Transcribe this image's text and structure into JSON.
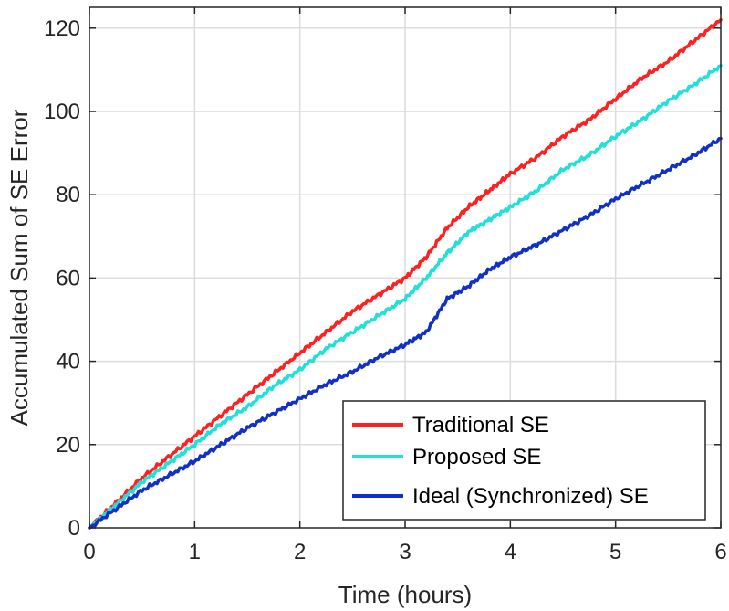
{
  "chart_data": {
    "type": "line",
    "title": "",
    "xlabel": "Time (hours)",
    "ylabel": "Accumulated Sum of SE Error",
    "xlim": [
      0,
      6
    ],
    "ylim": [
      0,
      125
    ],
    "xticks": [
      0,
      1,
      2,
      3,
      4,
      5,
      6
    ],
    "yticks": [
      0,
      20,
      40,
      60,
      80,
      100,
      120
    ],
    "xtick_labels": [
      "0",
      "1",
      "2",
      "3",
      "4",
      "5",
      "6"
    ],
    "ytick_labels": [
      "0",
      "20",
      "40",
      "60",
      "80",
      "100",
      "120"
    ],
    "grid": true,
    "legend_position": "bottom-right",
    "x": [
      0,
      0.25,
      0.5,
      0.75,
      1.0,
      1.25,
      1.5,
      1.75,
      2.0,
      2.25,
      2.5,
      2.75,
      3.0,
      3.2,
      3.4,
      3.6,
      3.8,
      4.0,
      4.25,
      4.5,
      4.75,
      5.0,
      5.25,
      5.5,
      5.75,
      6.0
    ],
    "series": [
      {
        "name": "Traditional SE",
        "color": "#ff2020",
        "values": [
          0,
          6,
          12,
          17,
          22,
          27,
          32,
          37,
          42,
          47,
          52,
          56,
          60,
          65,
          72,
          77,
          81,
          85,
          89,
          94,
          98,
          103,
          108,
          112,
          117,
          122
        ]
      },
      {
        "name": "Proposed SE",
        "color": "#20e0d8",
        "values": [
          0,
          5.5,
          11,
          15.5,
          20,
          25,
          29,
          34,
          38,
          43,
          47,
          51,
          55,
          60,
          66,
          71,
          74,
          77,
          81,
          86,
          89.5,
          94,
          98,
          102.5,
          106.5,
          111
        ]
      },
      {
        "name": "Ideal (Synchronized) SE",
        "color": "#1030c8",
        "values": [
          0,
          4.5,
          9,
          12.5,
          16,
          20,
          24,
          27.5,
          31,
          34.5,
          37.5,
          41,
          44,
          47,
          55,
          58,
          62,
          65,
          68,
          71.5,
          75,
          79,
          82.5,
          86,
          89.5,
          93.5
        ]
      }
    ]
  }
}
